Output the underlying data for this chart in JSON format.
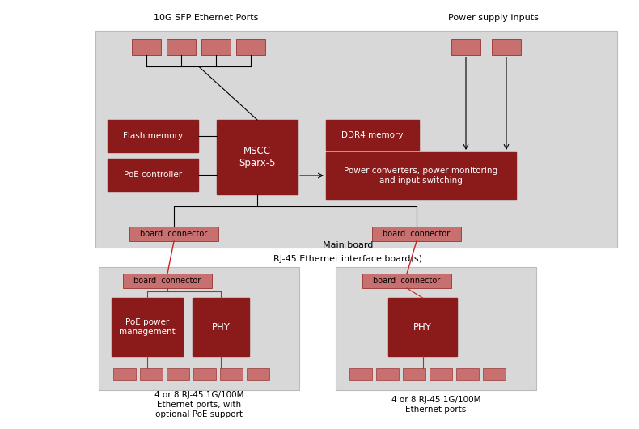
{
  "dark_red": "#8B1A1A",
  "light_red": "#C87070",
  "white": "#ffffff",
  "black": "#000000",
  "gray_bg": "#d8d8d8",
  "title_10g": "10G SFP Ethernet Ports",
  "title_power": "Power supply inputs",
  "label_main_board": "Main board",
  "label_rj45": "RJ-45 Ethernet interface board(s)",
  "label_bottom_left": "4 or 8 RJ-45 1G/100M\nEthernet ports, with\noptional PoE support",
  "label_bottom_right": "4 or 8 RJ-45 1G/100M\nEthernet ports"
}
